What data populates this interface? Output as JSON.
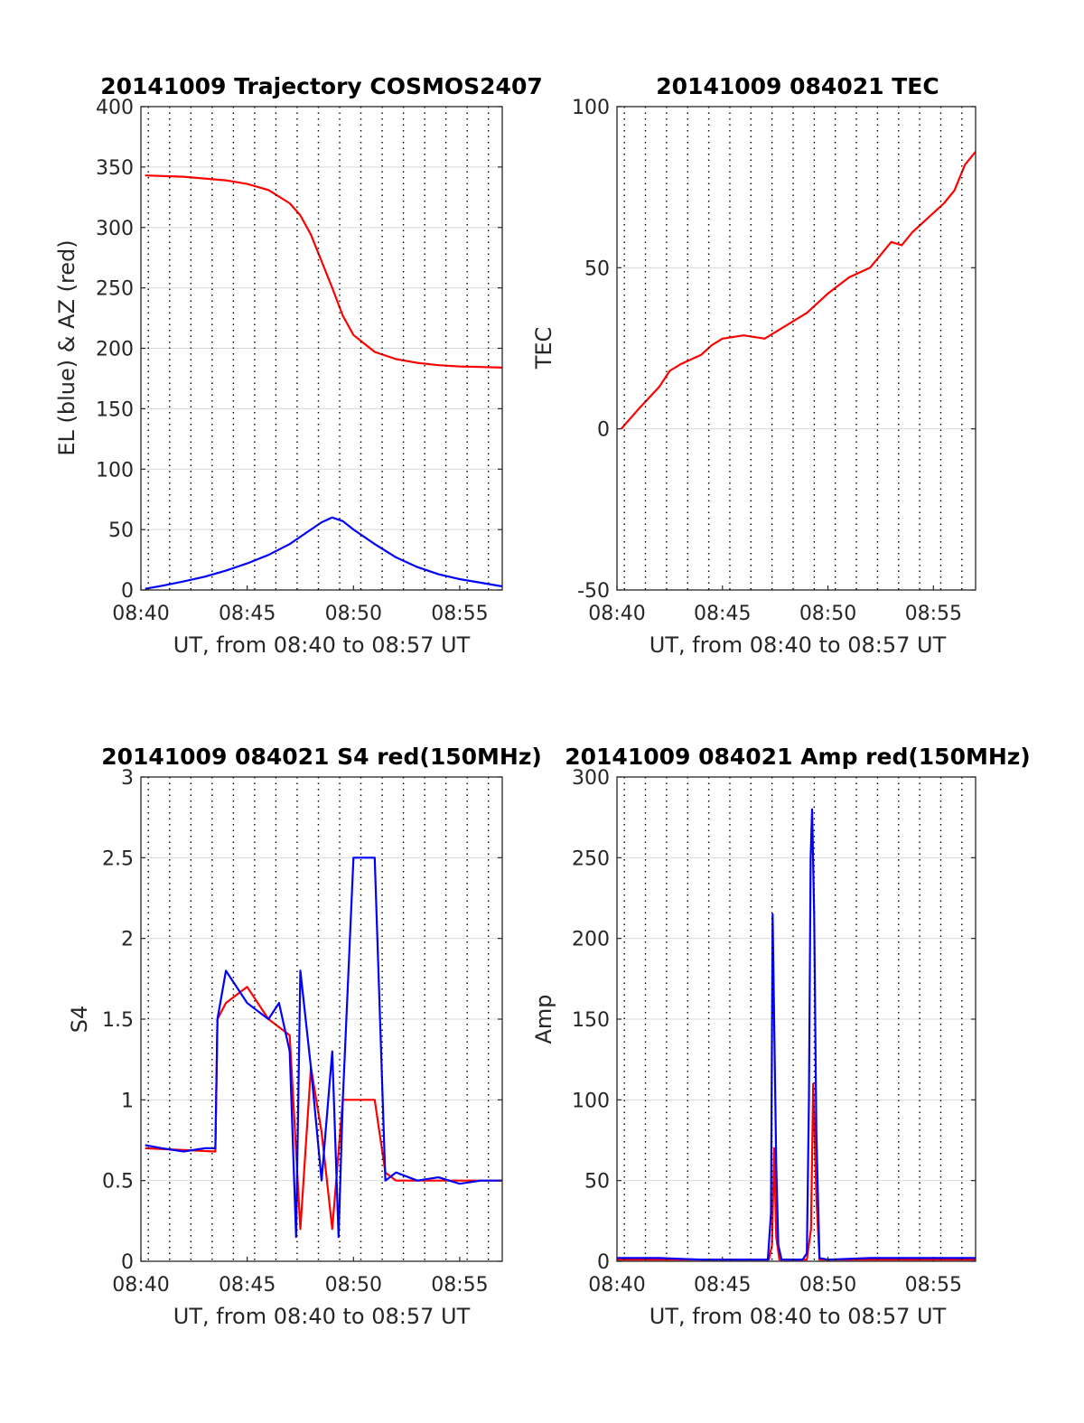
{
  "colors": {
    "red": "#ff0000",
    "blue": "#0000ff",
    "grid": "#d9d9d9",
    "dotgrid": "#000000",
    "axis": "#262626"
  },
  "chart_data": [
    {
      "id": "traj",
      "type": "line",
      "title": "20141009 Trajectory COSMOS2407",
      "xlabel": "UT, from 08:40 to 08:57 UT",
      "ylabel": "EL (blue) & AZ (red)",
      "xlim_minutes": [
        0,
        17
      ],
      "ylim": [
        0,
        400
      ],
      "yticks": [
        0,
        50,
        100,
        150,
        200,
        250,
        300,
        350,
        400
      ],
      "ytick_labels": [
        "0",
        "50",
        "100",
        "150",
        "200",
        "250",
        "300",
        "350",
        "400"
      ],
      "xticks_minutes": [
        0,
        5,
        10,
        15
      ],
      "xtick_labels": [
        "08:40",
        "08:45",
        "08:50",
        "08:55"
      ],
      "grid": true,
      "series": [
        {
          "color": "red",
          "x_minutes": [
            0.2,
            2,
            4,
            5,
            6,
            7,
            7.5,
            8,
            8.5,
            9,
            9.5,
            10,
            11,
            12,
            13,
            14,
            15,
            16,
            17
          ],
          "values": [
            343,
            342,
            339,
            336,
            331,
            320,
            310,
            294,
            272,
            250,
            227,
            211,
            197,
            191,
            188,
            186,
            185,
            184.5,
            184
          ]
        },
        {
          "color": "blue",
          "x_minutes": [
            0.2,
            1,
            2,
            3,
            4,
            5,
            6,
            7,
            7.5,
            8,
            8.5,
            9,
            9.5,
            10,
            11,
            12,
            13,
            14,
            15,
            16,
            17
          ],
          "values": [
            1,
            3.5,
            7,
            11,
            16,
            22,
            29,
            38,
            44,
            50,
            56,
            60,
            57,
            50,
            38,
            27,
            19,
            13,
            9,
            6,
            3
          ]
        }
      ]
    },
    {
      "id": "tec",
      "type": "line",
      "title": "20141009 084021 TEC",
      "xlabel": "UT, from 08:40 to 08:57 UT",
      "ylabel": "TEC",
      "xlim_minutes": [
        0,
        17
      ],
      "ylim": [
        -50,
        100
      ],
      "yticks": [
        -50,
        0,
        50,
        100
      ],
      "ytick_labels": [
        "-50",
        "0",
        "50",
        "100"
      ],
      "xticks_minutes": [
        0,
        5,
        10,
        15
      ],
      "xtick_labels": [
        "08:40",
        "08:45",
        "08:50",
        "08:55"
      ],
      "grid": true,
      "series": [
        {
          "color": "red",
          "x_minutes": [
            0.2,
            1,
            2,
            2.5,
            3,
            4,
            4.5,
            5,
            6,
            7,
            8,
            9,
            10,
            11,
            12,
            12.5,
            13,
            13.5,
            14,
            15,
            15.5,
            16,
            16.5,
            17
          ],
          "values": [
            0,
            6,
            13,
            18,
            20,
            23,
            26,
            28,
            29,
            28,
            32,
            36,
            42,
            47,
            50,
            54,
            58,
            57,
            61,
            67,
            70,
            74,
            82,
            86
          ]
        }
      ]
    },
    {
      "id": "s4",
      "type": "line",
      "title": "20141009 084021 S4 red(150MHz)",
      "xlabel": "UT, from 08:40 to 08:57 UT",
      "ylabel": "S4",
      "xlim_minutes": [
        0,
        17
      ],
      "ylim": [
        0,
        3
      ],
      "yticks": [
        0,
        0.5,
        1,
        1.5,
        2,
        2.5,
        3
      ],
      "ytick_labels": [
        "0",
        "0.5",
        "1",
        "1.5",
        "2",
        "2.5",
        "3"
      ],
      "xticks_minutes": [
        0,
        5,
        10,
        15
      ],
      "xtick_labels": [
        "08:40",
        "08:45",
        "08:50",
        "08:55"
      ],
      "grid": true,
      "series": [
        {
          "color": "red",
          "x_minutes": [
            0.2,
            3.5,
            3.6,
            4,
            5,
            6,
            7,
            7.5,
            8,
            8.5,
            9,
            9.5,
            10,
            11,
            11.5,
            12,
            14,
            17
          ],
          "values": [
            0.7,
            0.68,
            1.5,
            1.6,
            1.7,
            1.5,
            1.4,
            0.2,
            1.2,
            0.8,
            0.2,
            1.0,
            1.0,
            1.0,
            0.55,
            0.5,
            0.5,
            0.5
          ]
        },
        {
          "color": "blue",
          "x_minutes": [
            0.2,
            1,
            2,
            3,
            3.5,
            3.6,
            4,
            4.5,
            5,
            5.5,
            6,
            6.5,
            7,
            7.3,
            7.5,
            8,
            8.5,
            9,
            9.3,
            9.5,
            10,
            11,
            11.5,
            12,
            13,
            14,
            15,
            16,
            17
          ],
          "values": [
            0.72,
            0.7,
            0.68,
            0.7,
            0.7,
            1.5,
            1.8,
            1.7,
            1.6,
            1.55,
            1.5,
            1.6,
            1.3,
            0.15,
            1.8,
            1.2,
            0.5,
            1.3,
            0.15,
            1.0,
            2.5,
            2.5,
            0.5,
            0.55,
            0.5,
            0.52,
            0.48,
            0.5,
            0.5
          ]
        }
      ]
    },
    {
      "id": "amp",
      "type": "line",
      "title": "20141009 084021 Amp red(150MHz)",
      "xlabel": "UT, from 08:40 to 08:57 UT",
      "ylabel": "Amp",
      "xlim_minutes": [
        0,
        17
      ],
      "ylim": [
        0,
        300
      ],
      "yticks": [
        0,
        50,
        100,
        150,
        200,
        250,
        300
      ],
      "ytick_labels": [
        "0",
        "50",
        "100",
        "150",
        "200",
        "250",
        "300"
      ],
      "xticks_minutes": [
        0,
        5,
        10,
        15
      ],
      "xtick_labels": [
        "08:40",
        "08:45",
        "08:50",
        "08:55"
      ],
      "grid": true,
      "series": [
        {
          "color": "red",
          "x_minutes": [
            0,
            7.2,
            7.35,
            7.45,
            7.55,
            7.7,
            9,
            9.2,
            9.3,
            9.45,
            9.6,
            17
          ],
          "values": [
            1,
            1,
            10,
            70,
            15,
            1,
            1,
            20,
            110,
            40,
            1,
            1
          ]
        },
        {
          "color": "blue",
          "x_minutes": [
            0,
            2,
            4,
            7.15,
            7.3,
            7.38,
            7.45,
            7.55,
            7.65,
            7.8,
            8.8,
            9.0,
            9.1,
            9.18,
            9.25,
            9.35,
            9.45,
            9.6,
            10,
            12,
            14,
            17
          ],
          "values": [
            2,
            2,
            1,
            1,
            30,
            215,
            150,
            60,
            10,
            1,
            1,
            5,
            100,
            250,
            280,
            215,
            80,
            2,
            1,
            2,
            2,
            2
          ]
        }
      ]
    }
  ]
}
